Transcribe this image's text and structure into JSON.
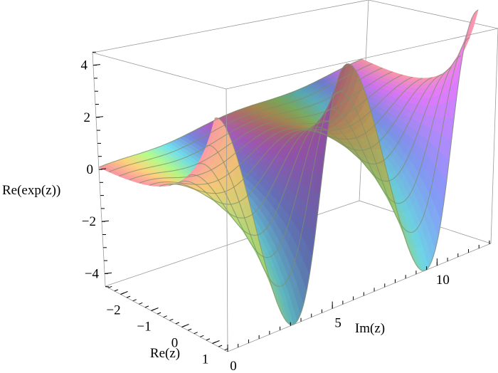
{
  "chart_data": {
    "type": "surface3d",
    "function": "Re(exp(z))",
    "title": "",
    "xlabel": "Re(z)",
    "ylabel": "Im(z)",
    "zlabel": "Re(exp(z))",
    "xlim": [
      -2.5,
      1.5
    ],
    "ylim": [
      0,
      12.57
    ],
    "zlim": [
      -4.48,
      4.48
    ],
    "x_ticks": [
      {
        "value": -2,
        "label": "−2"
      },
      {
        "value": -1,
        "label": "−1"
      },
      {
        "value": 0,
        "label": "0"
      },
      {
        "value": 1,
        "label": "1"
      }
    ],
    "y_ticks": [
      {
        "value": 0,
        "label": "0"
      },
      {
        "value": 5,
        "label": "5"
      },
      {
        "value": 10,
        "label": "10"
      }
    ],
    "z_ticks": [
      {
        "value": -4,
        "label": "−4"
      },
      {
        "value": -2,
        "label": "−2"
      },
      {
        "value": 0,
        "label": "0"
      },
      {
        "value": 2,
        "label": "2"
      },
      {
        "value": 4,
        "label": "4"
      }
    ],
    "contour_lines": "constant Re(z)",
    "colors": {
      "box": "#9a9a9a",
      "mesh": "#7f8f6a",
      "surface_palette": [
        "#ff9aa8",
        "#ffd27a",
        "#b8ff8a",
        "#7af0ff",
        "#8a9cff",
        "#e27aff"
      ]
    }
  }
}
